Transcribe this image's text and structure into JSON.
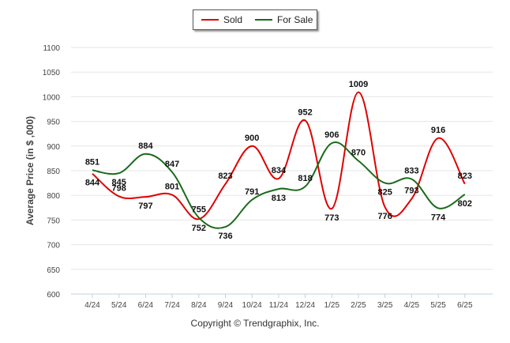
{
  "chart_data": {
    "type": "line",
    "categories": [
      "4/24",
      "5/24",
      "6/24",
      "7/24",
      "8/24",
      "9/24",
      "10/24",
      "11/24",
      "12/24",
      "1/25",
      "2/25",
      "3/25",
      "4/25",
      "5/25",
      "6/25"
    ],
    "series": [
      {
        "name": "Sold",
        "color": "#e00000",
        "values": [
          844,
          798,
          797,
          801,
          752,
          823,
          900,
          834,
          952,
          773,
          1009,
          776,
          793,
          916,
          823
        ]
      },
      {
        "name": "For Sale",
        "color": "#1a6b1a",
        "values": [
          851,
          845,
          884,
          847,
          755,
          736,
          791,
          813,
          818,
          906,
          870,
          825,
          833,
          774,
          802
        ]
      }
    ],
    "yticks": [
      600,
      650,
      700,
      750,
      800,
      850,
      900,
      950,
      1000,
      1050,
      1100
    ],
    "ylim": [
      600,
      1100
    ],
    "ylabel": "Average Price (in $ ,000)",
    "grid": true,
    "legend_placement": "top-center"
  },
  "credit": "Copyright © Trendgraphix, Inc."
}
